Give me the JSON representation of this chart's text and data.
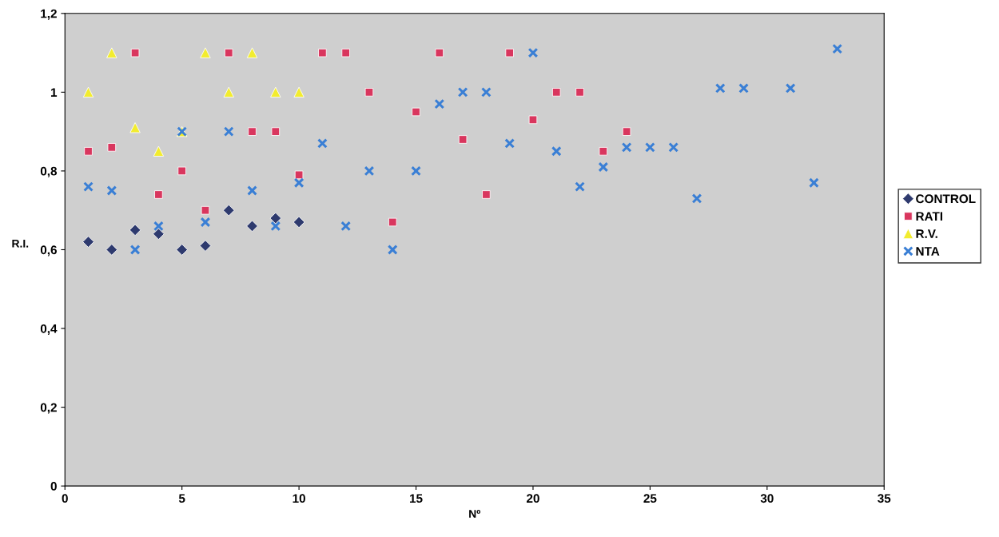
{
  "chart_data": {
    "type": "scatter",
    "xlabel": "Nº",
    "ylabel": "R.I.",
    "xlim": [
      0,
      35
    ],
    "xticks": [
      0,
      5,
      10,
      15,
      20,
      25,
      30,
      35
    ],
    "ylim": [
      0,
      1.2
    ],
    "yticks": [
      0,
      {
        "value": 0.2,
        "label": "0,2"
      },
      {
        "value": 0.4,
        "label": "0,4"
      },
      {
        "value": 0.6,
        "label": "0,6"
      },
      {
        "value": 0.8,
        "label": "0,8"
      },
      1,
      {
        "value": 1.2,
        "label": "1,2"
      }
    ],
    "grid": false,
    "legend": "right",
    "series": [
      {
        "name": "CONTROL",
        "color": "#2e3a6e",
        "marker": "diamond",
        "x": [
          1,
          2,
          3,
          4,
          5,
          6,
          7,
          8,
          9,
          10
        ],
        "values": [
          0.62,
          0.6,
          0.65,
          0.64,
          0.6,
          0.61,
          0.7,
          0.66,
          0.68,
          0.67
        ]
      },
      {
        "name": "RATI",
        "color": "#d9365e",
        "marker": "square",
        "x": [
          1,
          2,
          3,
          4,
          5,
          6,
          7,
          8,
          9,
          10,
          11,
          12,
          13,
          14,
          15,
          16,
          17,
          18,
          19,
          20,
          21,
          22,
          23,
          24
        ],
        "values": [
          0.85,
          0.86,
          1.1,
          0.74,
          0.8,
          0.7,
          1.1,
          0.9,
          0.9,
          0.79,
          1.1,
          1.1,
          1.0,
          0.67,
          0.95,
          1.1,
          0.88,
          0.74,
          1.1,
          0.93,
          1.0,
          1.0,
          0.85,
          0.9
        ]
      },
      {
        "name": "R.V.",
        "color": "#f2ec2e",
        "marker": "triangle",
        "x": [
          1,
          2,
          3,
          4,
          5,
          6,
          7,
          8,
          9,
          10
        ],
        "values": [
          1.0,
          1.1,
          0.91,
          0.85,
          0.9,
          1.1,
          1.0,
          1.1,
          1.0,
          1.0
        ]
      },
      {
        "name": "NTA",
        "color": "#3a7fd5",
        "marker": "cross",
        "x": [
          1,
          2,
          3,
          4,
          5,
          6,
          7,
          8,
          9,
          10,
          11,
          12,
          13,
          14,
          15,
          16,
          17,
          18,
          19,
          20,
          21,
          22,
          23,
          24,
          25,
          26,
          27,
          28,
          29,
          31,
          32,
          33
        ],
        "values": [
          0.76,
          0.75,
          0.6,
          0.66,
          0.9,
          0.67,
          0.9,
          0.75,
          0.66,
          0.77,
          0.87,
          0.66,
          0.8,
          0.6,
          0.8,
          0.97,
          1.0,
          1.0,
          0.87,
          1.1,
          0.85,
          0.76,
          0.81,
          0.86,
          0.86,
          0.86,
          0.73,
          1.01,
          1.01,
          1.01,
          0.77,
          1.11
        ]
      }
    ]
  }
}
